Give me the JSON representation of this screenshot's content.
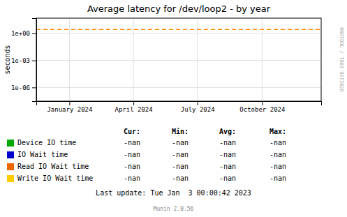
{
  "chart_data": {
    "type": "line",
    "title": "Average latency for /dev/loop2 - by year",
    "y_label": "seconds",
    "log": "y",
    "grid": true,
    "legend": "bottom",
    "xlim": [
      1700000000,
      1735000000
    ],
    "xticks": [
      {
        "value": 1704067200,
        "label": "January 2024"
      },
      {
        "value": 1711929600,
        "label": "April 2024"
      },
      {
        "value": 1719792000,
        "label": "July 2024"
      },
      {
        "value": 1727740800,
        "label": "October 2024"
      }
    ],
    "ylim": [
      3e-08,
      50
    ],
    "yticks": [
      {
        "value": 1e-06,
        "label": "1e-06"
      },
      {
        "value": 0.001,
        "label": "1e-03"
      },
      {
        "value": 1,
        "label": "1e+00"
      }
    ],
    "series": [
      {
        "name": "Device IO time",
        "color": "#00aa00"
      },
      {
        "name": "IO Wait time",
        "color": "#0000cc"
      },
      {
        "name": "Read IO Wait time",
        "color": "#ee6600"
      },
      {
        "name": "Write IO Wait time",
        "color": "#ffcc00"
      }
    ],
    "reference_lines": [
      {
        "y": 2.8,
        "color": "#ff8800",
        "line_style": "dashed"
      }
    ],
    "table": {
      "headers": [
        "Cur:",
        "Min:",
        "Avg:",
        "Max:"
      ],
      "rows": [
        [
          "-nan",
          "-nan",
          "-nan",
          "-nan"
        ],
        [
          "-nan",
          "-nan",
          "-nan",
          "-nan"
        ],
        [
          "-nan",
          "-nan",
          "-nan",
          "-nan"
        ],
        [
          "-nan",
          "-nan",
          "-nan",
          "-nan"
        ]
      ]
    },
    "annotations": [
      "Last update: Tue Jan  3 00:00:42 2023",
      "Munin 2.0.56",
      "RRDTOOL / TOBI OETIKER"
    ]
  }
}
